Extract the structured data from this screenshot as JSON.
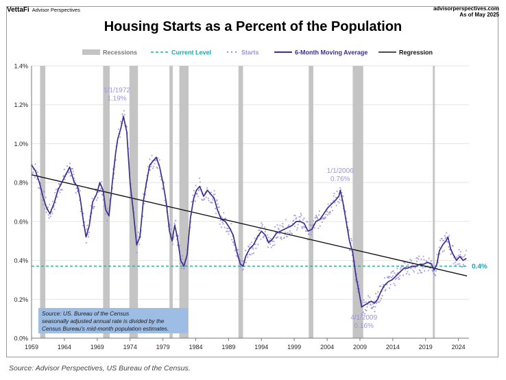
{
  "header": {
    "brand": "VettaFi",
    "brand_sub": "Advisor Perspectives",
    "site_line1": "advisorperspectives.com",
    "site_line2": "As of May 2025",
    "title": "Housing Starts as a Percent of the Population"
  },
  "caption": "Source: Advisor Perspectives, US Bureau of the Census.",
  "colors": {
    "moving_average": "#3b2f8f",
    "starts": "#9b93dd",
    "current_level": "#19a9a9",
    "regression": "#111111",
    "recession": "#c4c4c4",
    "source_box": "#9ebde4",
    "annotation_text": "#9b93dd"
  },
  "chart_data": {
    "type": "line",
    "title": "Housing Starts as a Percent of the Population",
    "xlabel": "",
    "ylabel": "",
    "xlim": [
      1959,
      2025.6
    ],
    "ylim": [
      0,
      1.4
    ],
    "x_ticks": [
      1959,
      1964,
      1969,
      1974,
      1979,
      1984,
      1989,
      1994,
      1999,
      2004,
      2009,
      2014,
      2019,
      2024
    ],
    "y_ticks": [
      {
        "v": 0.0,
        "label": "0.0%"
      },
      {
        "v": 0.2,
        "label": "0.2%"
      },
      {
        "v": 0.4,
        "label": "0.4%"
      },
      {
        "v": 0.6,
        "label": "0.6%"
      },
      {
        "v": 0.8,
        "label": "0.8%"
      },
      {
        "v": 1.0,
        "label": "1.0%"
      },
      {
        "v": 1.2,
        "label": "1.2%"
      },
      {
        "v": 1.4,
        "label": "1.4%"
      }
    ],
    "grid": true,
    "legend": {
      "placement": "top",
      "entries": [
        {
          "name": "Recessions",
          "style": "bar"
        },
        {
          "name": "Current Level",
          "style": "dashed"
        },
        {
          "name": "Starts",
          "style": "dots"
        },
        {
          "name": "6-Month Moving Average",
          "style": "line"
        },
        {
          "name": "Regression",
          "style": "line"
        }
      ]
    },
    "recessions": [
      [
        1960.3,
        1961.1
      ],
      [
        1969.9,
        1970.9
      ],
      [
        1973.9,
        1975.2
      ],
      [
        1980.0,
        1980.5
      ],
      [
        1981.5,
        1982.9
      ],
      [
        1990.5,
        1991.2
      ],
      [
        2001.2,
        2001.9
      ],
      [
        2007.9,
        2009.5
      ],
      [
        2020.1,
        2020.4
      ]
    ],
    "current_level": {
      "value": 0.37,
      "label": "0.4%"
    },
    "regression": {
      "x": [
        1959,
        2025.3
      ],
      "y": [
        0.84,
        0.32
      ]
    },
    "moving_average": {
      "name": "6-Month Moving Average",
      "x": [
        1959.0,
        1959.6,
        1960.2,
        1960.8,
        1961.3,
        1961.8,
        1962.5,
        1963.0,
        1963.6,
        1964.2,
        1964.8,
        1965.5,
        1966.0,
        1966.4,
        1966.9,
        1967.3,
        1967.8,
        1968.3,
        1968.9,
        1969.4,
        1969.9,
        1970.3,
        1970.8,
        1971.3,
        1971.8,
        1972.1,
        1972.6,
        1973.0,
        1973.5,
        1974.0,
        1974.5,
        1975.0,
        1975.5,
        1976.0,
        1976.5,
        1977.0,
        1977.5,
        1978.0,
        1978.5,
        1979.0,
        1979.5,
        1980.0,
        1980.4,
        1980.8,
        1981.2,
        1981.7,
        1982.2,
        1982.7,
        1983.2,
        1983.7,
        1984.1,
        1984.6,
        1985.2,
        1985.8,
        1986.3,
        1986.8,
        1987.3,
        1987.9,
        1988.5,
        1989.1,
        1989.7,
        1990.3,
        1990.8,
        1991.2,
        1991.6,
        1992.2,
        1992.8,
        1993.4,
        1994.0,
        1994.6,
        1995.1,
        1995.7,
        1996.3,
        1996.9,
        1997.5,
        1998.1,
        1998.7,
        1999.3,
        1999.9,
        2000.5,
        2001.1,
        2001.7,
        2002.3,
        2002.9,
        2003.5,
        2004.1,
        2004.7,
        2005.3,
        2005.8,
        2006.0,
        2006.4,
        2006.9,
        2007.4,
        2007.9,
        2008.4,
        2008.9,
        2009.25,
        2009.7,
        2010.2,
        2010.7,
        2011.2,
        2011.7,
        2012.2,
        2012.7,
        2013.3,
        2013.9,
        2014.5,
        2015.1,
        2015.7,
        2016.3,
        2016.9,
        2017.5,
        2018.1,
        2018.7,
        2019.3,
        2019.9,
        2020.3,
        2020.7,
        2021.1,
        2021.6,
        2022.1,
        2022.4,
        2022.8,
        2023.2,
        2023.7,
        2024.2,
        2024.7,
        2025.2
      ],
      "y": [
        0.89,
        0.86,
        0.8,
        0.72,
        0.67,
        0.64,
        0.7,
        0.76,
        0.8,
        0.84,
        0.88,
        0.8,
        0.78,
        0.72,
        0.6,
        0.52,
        0.58,
        0.7,
        0.74,
        0.8,
        0.76,
        0.66,
        0.63,
        0.8,
        0.95,
        1.02,
        1.08,
        1.14,
        1.06,
        0.8,
        0.65,
        0.48,
        0.52,
        0.7,
        0.8,
        0.89,
        0.91,
        0.93,
        0.88,
        0.8,
        0.7,
        0.55,
        0.5,
        0.58,
        0.52,
        0.4,
        0.37,
        0.43,
        0.62,
        0.72,
        0.76,
        0.78,
        0.73,
        0.76,
        0.74,
        0.72,
        0.66,
        0.61,
        0.6,
        0.57,
        0.53,
        0.44,
        0.38,
        0.37,
        0.42,
        0.46,
        0.48,
        0.52,
        0.55,
        0.53,
        0.49,
        0.51,
        0.54,
        0.55,
        0.56,
        0.57,
        0.58,
        0.6,
        0.6,
        0.59,
        0.55,
        0.56,
        0.6,
        0.61,
        0.64,
        0.67,
        0.69,
        0.71,
        0.73,
        0.76,
        0.7,
        0.6,
        0.5,
        0.44,
        0.32,
        0.23,
        0.16,
        0.17,
        0.18,
        0.19,
        0.18,
        0.2,
        0.24,
        0.27,
        0.29,
        0.3,
        0.32,
        0.34,
        0.36,
        0.36,
        0.37,
        0.37,
        0.38,
        0.38,
        0.39,
        0.38,
        0.35,
        0.38,
        0.45,
        0.48,
        0.5,
        0.52,
        0.46,
        0.43,
        0.4,
        0.42,
        0.4,
        0.41
      ]
    },
    "starts": {
      "name": "Starts",
      "note": "monthly scatter around the moving average",
      "spread": 0.045
    },
    "annotations": [
      {
        "x": 1972.0,
        "y": 1.19,
        "date": "1/1/1972",
        "value": "1.19%",
        "text_anchor_x": 1972.0,
        "text_y": 1.265,
        "position": "above"
      },
      {
        "x": 2006.0,
        "y": 0.76,
        "date": "1/1/2006",
        "value": "0.76%",
        "text_anchor_x": 2006.0,
        "text_y": 0.85,
        "position": "above"
      },
      {
        "x": 2009.25,
        "y": 0.16,
        "date": "4/1/2009",
        "value": "0.16%",
        "text_anchor_x": 2009.6,
        "text_y": 0.095,
        "position": "below"
      }
    ],
    "source_note": [
      "Source: US. Bureau of the Census",
      "seasonally adjusted annual rate is divided by the",
      "Census Bureau's mid-month population estimates."
    ]
  }
}
